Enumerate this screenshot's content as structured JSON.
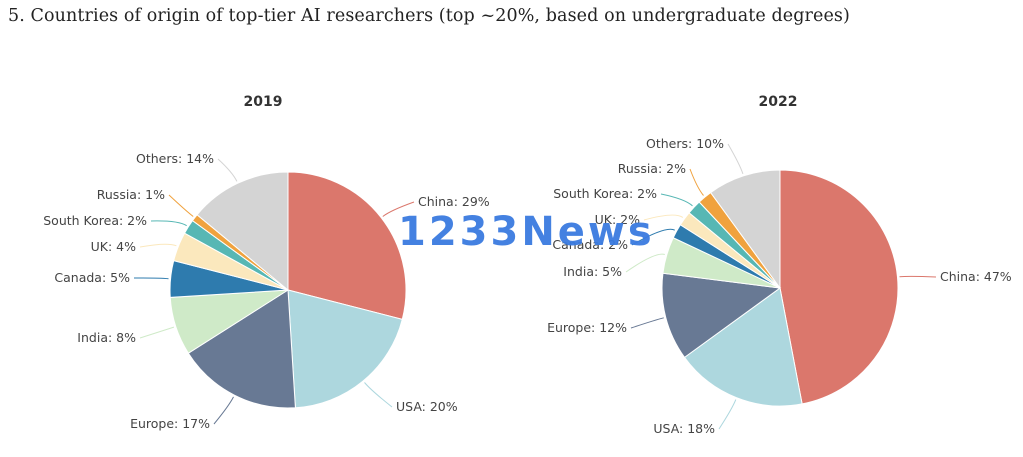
{
  "page": {
    "title": "5. Countries of origin of top-tier AI researchers (top ~20%, based on undergraduate degrees)",
    "watermark": "1233News"
  },
  "chart_data": [
    {
      "type": "pie",
      "title": "2019",
      "slices": [
        {
          "label": "China",
          "value": 29,
          "color": "#db776c"
        },
        {
          "label": "USA",
          "value": 20,
          "color": "#add7de"
        },
        {
          "label": "Europe",
          "value": 17,
          "color": "#687994"
        },
        {
          "label": "India",
          "value": 8,
          "color": "#cfeac8"
        },
        {
          "label": "Canada",
          "value": 5,
          "color": "#2e7bae"
        },
        {
          "label": "UK",
          "value": 4,
          "color": "#fbe8bd"
        },
        {
          "label": "South Korea",
          "value": 2,
          "color": "#57b7b4"
        },
        {
          "label": "Russia",
          "value": 1,
          "color": "#f0a23e"
        },
        {
          "label": "Others",
          "value": 14,
          "color": "#d4d4d4"
        }
      ]
    },
    {
      "type": "pie",
      "title": "2022",
      "slices": [
        {
          "label": "China",
          "value": 47,
          "color": "#db776c"
        },
        {
          "label": "USA",
          "value": 18,
          "color": "#add7de"
        },
        {
          "label": "Europe",
          "value": 12,
          "color": "#687994"
        },
        {
          "label": "India",
          "value": 5,
          "color": "#cfeac8"
        },
        {
          "label": "Canada",
          "value": 2,
          "color": "#2e7bae"
        },
        {
          "label": "UK",
          "value": 2,
          "color": "#fbe8bd"
        },
        {
          "label": "South Korea",
          "value": 2,
          "color": "#57b7b4"
        },
        {
          "label": "Russia",
          "value": 2,
          "color": "#f0a23e"
        },
        {
          "label": "Others",
          "value": 10,
          "color": "#d4d4d4"
        }
      ]
    }
  ]
}
